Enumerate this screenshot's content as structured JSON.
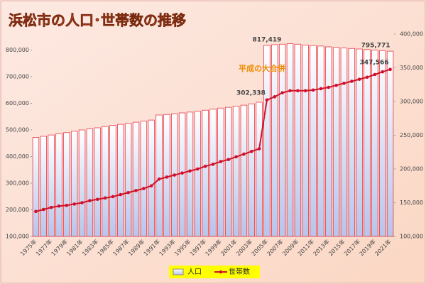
{
  "chart_data": {
    "type": "bar-line",
    "title": "浜松市の人口･世帯数の推移",
    "annotation": "平成の大合併",
    "categories": [
      "1975年",
      null,
      "1977年",
      null,
      "1979年",
      null,
      "1981年",
      null,
      "1983年",
      null,
      "1985年",
      null,
      "1987年",
      null,
      "1989年",
      null,
      "1991年",
      null,
      "1993年",
      null,
      "1995年",
      null,
      "1997年",
      null,
      "1999年",
      null,
      "2001年",
      null,
      "2003年",
      null,
      "2005年",
      null,
      "2007年",
      null,
      "2009年",
      null,
      "2011年",
      null,
      "2013年",
      null,
      "2015年",
      null,
      "2017年",
      null,
      "2019年",
      null,
      "2021年"
    ],
    "series": [
      {
        "name": "人口",
        "type": "bar",
        "color": "#e8394a",
        "axis": "y",
        "values": [
          472000,
          476000,
          481000,
          486000,
          490000,
          495000,
          500000,
          504000,
          508000,
          513000,
          517000,
          521000,
          525000,
          529000,
          533000,
          537000,
          556000,
          558000,
          561000,
          564000,
          567000,
          570000,
          574000,
          578000,
          582000,
          585000,
          589000,
          593000,
          598000,
          604000,
          817419,
          820000,
          822000,
          824000,
          822000,
          819000,
          817000,
          815000,
          812000,
          810000,
          808000,
          806000,
          804000,
          802000,
          800000,
          798000,
          795771
        ],
        "value_labels": [
          null,
          null,
          null,
          null,
          null,
          null,
          null,
          null,
          null,
          null,
          null,
          null,
          null,
          null,
          null,
          null,
          null,
          null,
          null,
          null,
          null,
          null,
          null,
          null,
          null,
          null,
          null,
          null,
          null,
          null,
          "817,419",
          null,
          null,
          null,
          null,
          null,
          null,
          null,
          null,
          null,
          null,
          null,
          null,
          null,
          null,
          null,
          "795,771"
        ]
      },
      {
        "name": "世帯数",
        "type": "line",
        "color": "#d0102a",
        "axis": "y2",
        "values": [
          137000,
          140000,
          143000,
          145000,
          146000,
          148000,
          150000,
          153000,
          155000,
          157000,
          159000,
          162000,
          165000,
          168000,
          171000,
          175000,
          185000,
          188000,
          191000,
          194000,
          197000,
          200000,
          204000,
          207000,
          211000,
          214000,
          218000,
          222000,
          226000,
          230000,
          302338,
          307000,
          313000,
          316000,
          316000,
          316000,
          317000,
          319000,
          321000,
          324000,
          327000,
          330000,
          333000,
          336000,
          340000,
          344000,
          347566
        ],
        "value_labels": [
          null,
          null,
          null,
          null,
          null,
          null,
          null,
          null,
          null,
          null,
          null,
          null,
          null,
          null,
          null,
          null,
          null,
          null,
          null,
          null,
          null,
          null,
          null,
          null,
          null,
          null,
          null,
          null,
          null,
          null,
          "302,338",
          null,
          null,
          null,
          null,
          null,
          null,
          null,
          null,
          null,
          null,
          null,
          null,
          null,
          null,
          null,
          "347,566"
        ]
      }
    ],
    "ylim": [
      100000,
      860000
    ],
    "yticks": [
      {
        "value": 100000,
        "label": "100,000"
      },
      {
        "value": 200000,
        "label": "200,000"
      },
      {
        "value": 300000,
        "label": "300,000"
      },
      {
        "value": 400000,
        "label": "400,000"
      },
      {
        "value": 500000,
        "label": "500,000"
      },
      {
        "value": 600000,
        "label": "600,000"
      },
      {
        "value": 700000,
        "label": "700,000"
      },
      {
        "value": 800000,
        "label": "800,000"
      }
    ],
    "y2lim": [
      100000,
      400000
    ],
    "y2ticks": [
      {
        "value": 100000,
        "label": "100,000"
      },
      {
        "value": 150000,
        "label": "150,000"
      },
      {
        "value": 200000,
        "label": "200,000"
      },
      {
        "value": 250000,
        "label": "250,000"
      },
      {
        "value": 300000,
        "label": "300,000"
      },
      {
        "value": 350000,
        "label": "350,000"
      },
      {
        "value": 400000,
        "label": "400,000"
      }
    ],
    "grid": false,
    "legend": "bottom"
  }
}
